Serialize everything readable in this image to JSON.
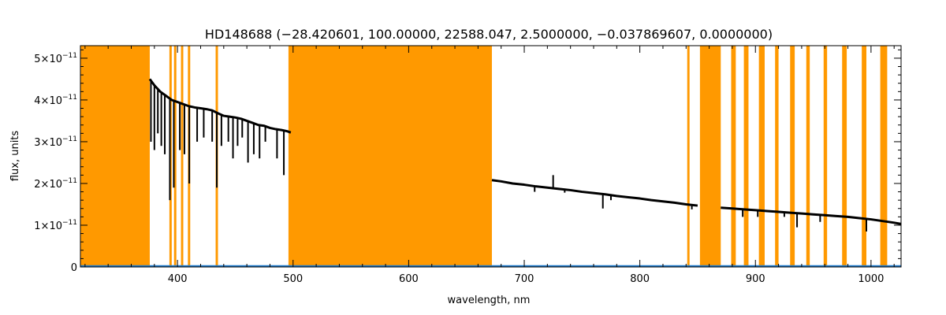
{
  "chart_data": {
    "type": "line",
    "title": "HD148688   (−28.420601, 100.00000, 22588.047, 2.5000000, −0.037869607, 0.0000000)",
    "xlabel": "wavelength, nm",
    "ylabel": "flux, units",
    "xlim": [
      316,
      1026
    ],
    "ylim": [
      0,
      5.3e-11
    ],
    "grid": false,
    "legend": "none",
    "x_ticks": [
      400,
      500,
      600,
      700,
      800,
      900,
      1000
    ],
    "y_ticks": [
      {
        "value": 0,
        "mantissa": "0",
        "exponent": ""
      },
      {
        "value": 1e-11,
        "mantissa": "1×10",
        "exponent": "−11"
      },
      {
        "value": 2e-11,
        "mantissa": "2×10",
        "exponent": "−11"
      },
      {
        "value": 3e-11,
        "mantissa": "3×10",
        "exponent": "−11"
      },
      {
        "value": 4e-11,
        "mantissa": "4×10",
        "exponent": "−11"
      },
      {
        "value": 5e-11,
        "mantissa": "5×10",
        "exponent": "−11"
      }
    ],
    "colors": {
      "mask": "#FF9900",
      "spectrum": "#000000",
      "error": "#1E78C8",
      "axes": "#000000"
    },
    "masked_regions": [
      [
        316,
        376
      ],
      [
        393,
        395
      ],
      [
        397,
        399
      ],
      [
        403,
        405
      ],
      [
        409,
        411
      ],
      [
        433,
        435
      ],
      [
        496,
        672
      ],
      [
        841,
        843
      ],
      [
        852,
        870
      ],
      [
        879,
        883
      ],
      [
        890,
        894
      ],
      [
        903,
        908
      ],
      [
        917,
        920
      ],
      [
        930,
        934
      ],
      [
        944,
        947
      ],
      [
        959,
        962
      ],
      [
        975,
        979
      ],
      [
        992,
        996
      ],
      [
        1008,
        1014
      ]
    ],
    "series": [
      {
        "role": "spectrum",
        "segments": [
          {
            "x": [
              376,
              380,
              385,
              390,
              395,
              400,
              405,
              410,
              415,
              420,
              425,
              430,
              435,
              440,
              445,
              450,
              455,
              460,
              465,
              470,
              475,
              480,
              485,
              490,
              495,
              498
            ],
            "y": [
              4.5e-11,
              4.35e-11,
              4.2e-11,
              4.1e-11,
              4e-11,
              3.95e-11,
              3.9e-11,
              3.85e-11,
              3.82e-11,
              3.8e-11,
              3.78e-11,
              3.75e-11,
              3.68e-11,
              3.62e-11,
              3.6e-11,
              3.58e-11,
              3.55e-11,
              3.5e-11,
              3.45e-11,
              3.4e-11,
              3.38e-11,
              3.33e-11,
              3.3e-11,
              3.28e-11,
              3.25e-11,
              3.22e-11
            ]
          },
          {
            "x": [
              672,
              680,
              690,
              700,
              710,
              720,
              730,
              740,
              750,
              760,
              770,
              780,
              790,
              800,
              810,
              820,
              830,
              840,
              850
            ],
            "y": [
              2.08e-11,
              2.05e-11,
              2e-11,
              1.97e-11,
              1.93e-11,
              1.9e-11,
              1.87e-11,
              1.84e-11,
              1.8e-11,
              1.77e-11,
              1.74e-11,
              1.7e-11,
              1.67e-11,
              1.64e-11,
              1.6e-11,
              1.57e-11,
              1.54e-11,
              1.5e-11,
              1.47e-11
            ]
          },
          {
            "x": [
              870,
              880,
              890,
              900,
              910,
              920,
              930,
              940,
              950,
              960,
              970,
              980,
              990,
              1000,
              1010,
              1020,
              1026
            ],
            "y": [
              1.42e-11,
              1.4e-11,
              1.38e-11,
              1.36e-11,
              1.34e-11,
              1.32e-11,
              1.3e-11,
              1.28e-11,
              1.26e-11,
              1.24e-11,
              1.22e-11,
              1.2e-11,
              1.17e-11,
              1.14e-11,
              1.1e-11,
              1.06e-11,
              1.03e-11
            ]
          }
        ],
        "absorption_lines": [
          {
            "x": 377,
            "y": 3e-11
          },
          {
            "x": 380,
            "y": 2.8e-11
          },
          {
            "x": 383,
            "y": 3.2e-11
          },
          {
            "x": 386,
            "y": 2.9e-11
          },
          {
            "x": 389,
            "y": 2.7e-11
          },
          {
            "x": 393.4,
            "y": 1.6e-11
          },
          {
            "x": 396.8,
            "y": 1.9e-11
          },
          {
            "x": 402,
            "y": 2.8e-11
          },
          {
            "x": 406,
            "y": 2.7e-11
          },
          {
            "x": 410.2,
            "y": 2e-11
          },
          {
            "x": 417,
            "y": 3e-11
          },
          {
            "x": 422.7,
            "y": 3.1e-11
          },
          {
            "x": 430,
            "y": 3e-11
          },
          {
            "x": 434.0,
            "y": 1.9e-11
          },
          {
            "x": 438,
            "y": 2.9e-11
          },
          {
            "x": 444,
            "y": 3e-11
          },
          {
            "x": 448,
            "y": 2.6e-11
          },
          {
            "x": 452,
            "y": 2.9e-11
          },
          {
            "x": 456,
            "y": 3.1e-11
          },
          {
            "x": 461,
            "y": 2.5e-11
          },
          {
            "x": 466,
            "y": 2.7e-11
          },
          {
            "x": 471,
            "y": 2.6e-11
          },
          {
            "x": 476,
            "y": 3e-11
          },
          {
            "x": 486.1,
            "y": 2.6e-11
          },
          {
            "x": 492,
            "y": 2.2e-11
          },
          {
            "x": 709,
            "y": 1.8e-11
          },
          {
            "x": 725,
            "y": 2.2e-11
          },
          {
            "x": 735,
            "y": 1.78e-11
          },
          {
            "x": 768,
            "y": 1.4e-11
          },
          {
            "x": 775,
            "y": 1.6e-11
          },
          {
            "x": 845,
            "y": 1.38e-11
          },
          {
            "x": 889,
            "y": 1.2e-11
          },
          {
            "x": 902,
            "y": 1.2e-11
          },
          {
            "x": 925,
            "y": 1.2e-11
          },
          {
            "x": 936,
            "y": 9.5e-12
          },
          {
            "x": 956,
            "y": 1.08e-11
          },
          {
            "x": 996,
            "y": 8.5e-12
          }
        ]
      },
      {
        "role": "error",
        "segments": [
          {
            "x": [
              316,
              1026
            ],
            "y": [
              2e-13,
              2e-13
            ]
          }
        ]
      }
    ]
  }
}
